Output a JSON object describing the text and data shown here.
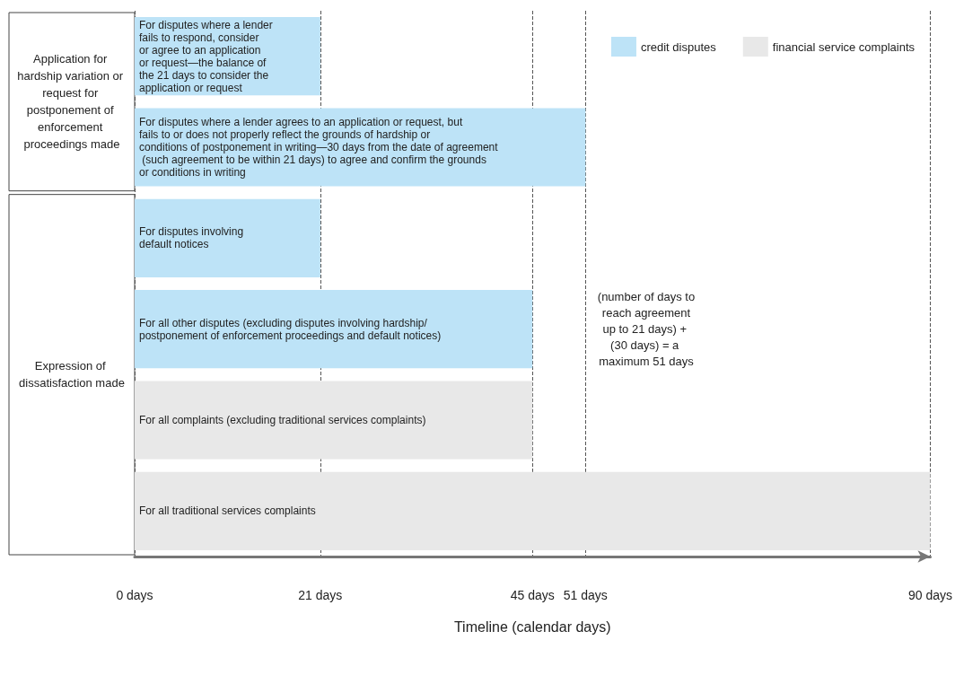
{
  "chart_data": {
    "type": "bar",
    "orientation": "horizontal",
    "xlabel": "Timeline (calendar days)",
    "categories": [
      "For disputes where a lender fails to respond, consider or agree to an application or request—the balance of the 21 days to consider the application or request",
      "For disputes where a lender agrees to an application or request, but fails to or does not properly reflect the grounds of hardship or conditions of postponement in writing—30 days from the date of agreement (such agreement to be within 21 days) to agree and confirm the grounds or conditions in writing",
      "For disputes involving default notices",
      "For all other disputes (excluding disputes involving hardship/ postponement of enforcement proceedings and default notices)",
      "For all complaints (excluding traditional services complaints)",
      "For all traditional services complaints"
    ],
    "series": [
      {
        "name": "credit disputes",
        "color": "#bde3f7",
        "values": [
          21,
          51,
          21,
          45,
          null,
          null
        ]
      },
      {
        "name": "financial service complaints",
        "color": "#e8e8e8",
        "values": [
          null,
          null,
          null,
          null,
          45,
          90
        ]
      }
    ],
    "xlim": [
      0,
      90
    ],
    "xticks": [
      {
        "value": 0,
        "label": "0 days"
      },
      {
        "value": 21,
        "label": "21 days"
      },
      {
        "value": 45,
        "label": "45 days"
      },
      {
        "value": 51,
        "label": "51 days"
      },
      {
        "value": 90,
        "label": "90 days"
      }
    ],
    "grid": "x",
    "legend": "top right",
    "annotations": [
      "Application for hardship variation or request for postponement of enforcement proceedings made",
      "Expression of dissatisfaction made",
      "(number of days to reach agreement up to 21 days) + (30 days) = a maximum 51 days"
    ]
  }
}
